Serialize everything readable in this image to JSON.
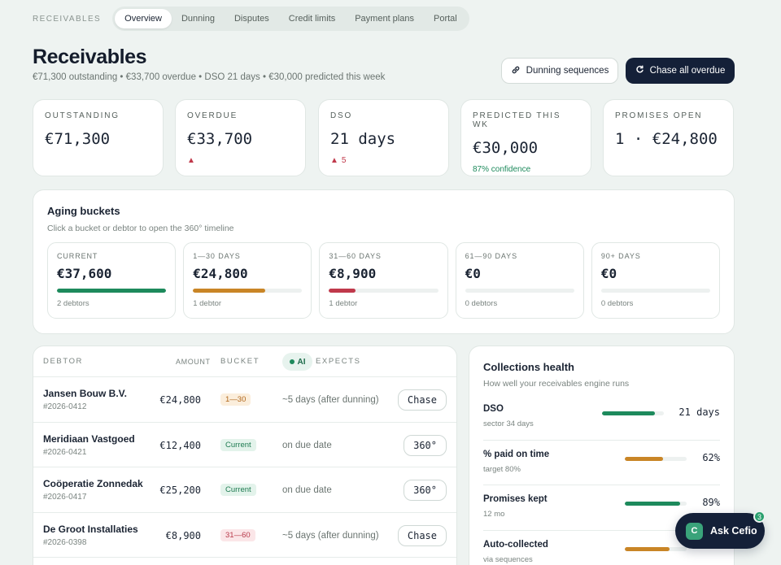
{
  "nav": {
    "section_label": "RECEIVABLES",
    "tabs": [
      {
        "label": "Overview",
        "active": true
      },
      {
        "label": "Dunning",
        "active": false
      },
      {
        "label": "Disputes",
        "active": false
      },
      {
        "label": "Credit limits",
        "active": false
      },
      {
        "label": "Payment plans",
        "active": false
      },
      {
        "label": "Portal",
        "active": false
      }
    ]
  },
  "header": {
    "title": "Receivables",
    "subtitle": "€71,300 outstanding • €33,700 overdue • DSO 21 days • €30,000 predicted this week",
    "btn_dunning": "Dunning sequences",
    "btn_chase": "Chase all overdue"
  },
  "kpis": {
    "outstanding": {
      "label": "OUTSTANDING",
      "value": "€71,300"
    },
    "overdue": {
      "label": "OVERDUE",
      "value": "€33,700"
    },
    "dso": {
      "label": "DSO",
      "value": "21 days",
      "delta": "5"
    },
    "predicted": {
      "label": "PREDICTED THIS WK",
      "value": "€30,000",
      "note": "87% confidence"
    },
    "promises": {
      "label": "PROMISES OPEN",
      "value": "1 · €24,800"
    }
  },
  "aging": {
    "title": "Aging buckets",
    "subtitle": "Click a bucket or debtor to open the 360° timeline",
    "buckets": [
      {
        "label": "CURRENT",
        "value": "€37,600",
        "count": "2 debtors",
        "fill": 1.0,
        "color": "#1d8a5c"
      },
      {
        "label": "1—30 DAYS",
        "value": "€24,800",
        "count": "1 debtor",
        "fill": 0.66,
        "color": "#c98526"
      },
      {
        "label": "31—60 DAYS",
        "value": "€8,900",
        "count": "1 debtor",
        "fill": 0.24,
        "color": "#c0394b"
      },
      {
        "label": "61—90 DAYS",
        "value": "€0",
        "count": "0 debtors",
        "fill": 0,
        "color": "#c0394b"
      },
      {
        "label": "90+ DAYS",
        "value": "€0",
        "count": "0 debtors",
        "fill": 0,
        "color": "#c0394b"
      }
    ]
  },
  "table": {
    "headers": {
      "debtor": "DEBTOR",
      "amount": "AMOUNT",
      "bucket": "BUCKET",
      "ai": "AI",
      "expects": "EXPECTS"
    },
    "rows": [
      {
        "name": "Jansen Bouw B.V.",
        "id": "#2026-0412",
        "amount": "€24,800",
        "bucket": "1—30",
        "bucket_class": "b-1-30",
        "expects": "~5 days (after dunning)",
        "action": "Chase"
      },
      {
        "name": "Meridiaan Vastgoed",
        "id": "#2026-0421",
        "amount": "€12,400",
        "bucket": "Current",
        "bucket_class": "b-current",
        "expects": "on due date",
        "action": "360°"
      },
      {
        "name": "Coöperatie Zonnedak",
        "id": "#2026-0417",
        "amount": "€25,200",
        "bucket": "Current",
        "bucket_class": "b-current",
        "expects": "on due date",
        "action": "360°"
      },
      {
        "name": "De Groot Installaties",
        "id": "#2026-0398",
        "amount": "€8,900",
        "bucket": "31—60",
        "bucket_class": "b-31-60",
        "expects": "~5 days (after dunning)",
        "action": "Chase"
      }
    ]
  },
  "health": {
    "title": "Collections health",
    "subtitle": "How well your receivables engine runs",
    "metrics": [
      {
        "name": "DSO",
        "note": "sector 34 days",
        "value": "21 days",
        "fill": 0.85,
        "color": "#1d8a5c"
      },
      {
        "name": "% paid on time",
        "note": "target 80%",
        "value": "62%",
        "fill": 0.62,
        "color": "#c98526"
      },
      {
        "name": "Promises kept",
        "note": "12 mo",
        "value": "89%",
        "fill": 0.89,
        "color": "#1d8a5c"
      },
      {
        "name": "Auto-collected",
        "note": "via sequences",
        "value": "",
        "fill": 0.72,
        "color": "#c98526"
      }
    ]
  },
  "assistant": {
    "label": "Ask Cefio",
    "logo": "C",
    "badge": "3"
  },
  "colors": {
    "brand_dark": "#142038",
    "green": "#1d8a5c",
    "amber": "#c98526",
    "red": "#c0394b"
  }
}
